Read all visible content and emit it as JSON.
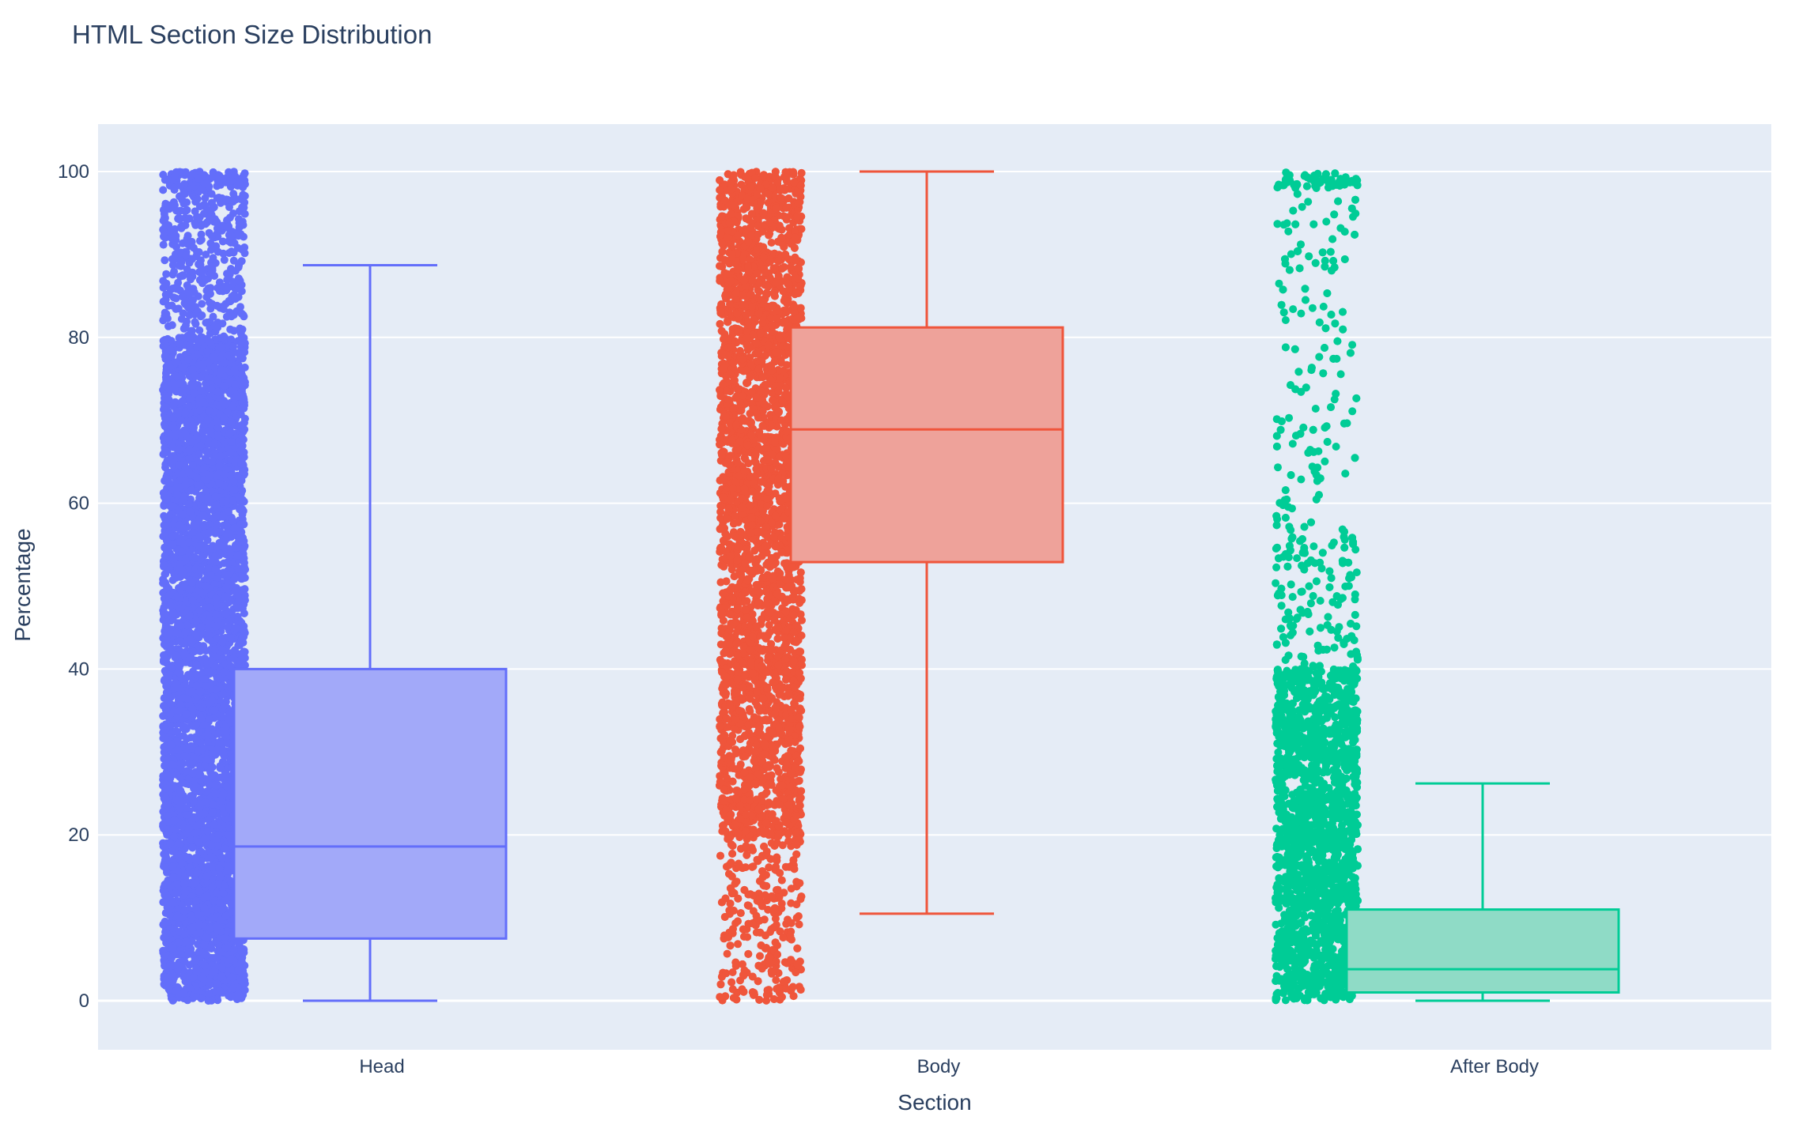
{
  "chart_data": {
    "type": "box",
    "title": "HTML Section Size Distribution",
    "xlabel": "Section",
    "ylabel": "Percentage",
    "ylim": [
      -5.5,
      105.5
    ],
    "yticks": [
      0,
      20,
      40,
      60,
      80,
      100
    ],
    "grid": true,
    "legend": "none",
    "background_color": "#E5ECF6",
    "grid_color": "#FFFFFF",
    "text_color": "#2A3F5F",
    "categories": [
      "Head",
      "Body",
      "After Body"
    ],
    "series": [
      {
        "category": "Head",
        "color": "#636EFA",
        "fill_color": "#A2A9F9",
        "min": 0,
        "q1": 7.5,
        "median": 18.6,
        "q3": 40,
        "max": 88.7,
        "points_shape": "dense from 0 to 100, thinning above 80"
      },
      {
        "category": "Body",
        "color": "#EF553B",
        "fill_color": "#EEA29A",
        "min": 10.5,
        "q1": 52.9,
        "median": 68.9,
        "q3": 81.2,
        "max": 100,
        "points_shape": "dense from 0 to 100, thinning below 20"
      },
      {
        "category": "After Body",
        "color": "#00CC96",
        "fill_color": "#8FDBC6",
        "min": 0,
        "q1": 1,
        "median": 3.8,
        "q3": 11,
        "max": 26.2,
        "points_shape": "dense from 0 to 40, sparse from 40 to 100"
      }
    ]
  }
}
